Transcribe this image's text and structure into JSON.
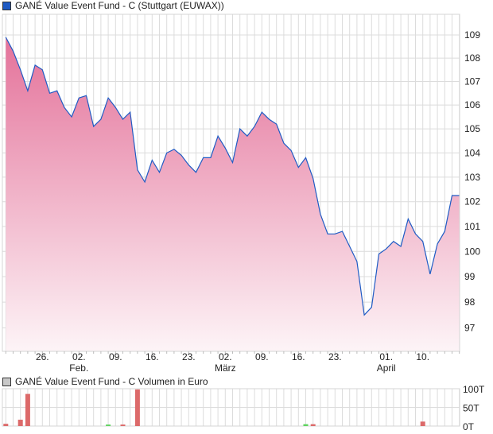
{
  "chart_data": [
    {
      "type": "area",
      "title": "GANÉ Value Event Fund - C (Stuttgart (EUWAX))",
      "yscale": "log",
      "ylim": [
        96.1,
        109.9
      ],
      "y_ticks": [
        97,
        98,
        99,
        100,
        101,
        102,
        103,
        104,
        105,
        106,
        107,
        108,
        109
      ],
      "grid": true,
      "legend": "top-left",
      "line_color": "#1f5bc4",
      "fill_top_color": "#e4729a",
      "fill_bottom_color": "#fdf4f7",
      "values": [
        108.9,
        108.3,
        107.5,
        106.6,
        107.7,
        107.5,
        106.5,
        106.6,
        105.9,
        105.5,
        106.3,
        106.4,
        105.1,
        105.4,
        106.3,
        105.9,
        105.4,
        105.7,
        103.3,
        102.8,
        103.7,
        103.2,
        104.0,
        104.15,
        103.9,
        103.5,
        103.2,
        103.8,
        103.8,
        104.7,
        104.2,
        103.6,
        105.0,
        104.7,
        105.1,
        105.7,
        105.4,
        105.2,
        104.4,
        104.1,
        103.4,
        103.8,
        102.95,
        101.5,
        100.7,
        100.7,
        100.8,
        100.2,
        99.6,
        97.5,
        97.8,
        99.9,
        100.1,
        100.4,
        100.2,
        101.3,
        100.7,
        100.4,
        99.1,
        100.3,
        100.8,
        102.25,
        102.25
      ],
      "x_ticks": [
        {
          "index": 5,
          "label": "26."
        },
        {
          "index": 10,
          "label": "02.",
          "month": "Feb."
        },
        {
          "index": 15,
          "label": "09."
        },
        {
          "index": 20,
          "label": "16."
        },
        {
          "index": 25,
          "label": "23."
        },
        {
          "index": 30,
          "label": "02.",
          "month": "März"
        },
        {
          "index": 35,
          "label": "09."
        },
        {
          "index": 40,
          "label": "16."
        },
        {
          "index": 45,
          "label": "23."
        },
        {
          "index": 52,
          "label": "01.",
          "month": "April"
        },
        {
          "index": 57,
          "label": "10."
        }
      ]
    },
    {
      "type": "bar",
      "title": "GANÉ Value Event Fund - C Volumen in Euro",
      "ylim": [
        0,
        100
      ],
      "y_ticks": [
        {
          "value": 0,
          "label": "0T"
        },
        {
          "value": 50,
          "label": "50T"
        },
        {
          "value": 100,
          "label": "100T"
        }
      ],
      "up_color": "#5fd35f",
      "down_color": "#dc6a6a",
      "bars": [
        {
          "index": 0,
          "value": 6,
          "dir": "down"
        },
        {
          "index": 2,
          "value": 17,
          "dir": "down"
        },
        {
          "index": 3,
          "value": 86,
          "dir": "down"
        },
        {
          "index": 14,
          "value": 4,
          "dir": "up"
        },
        {
          "index": 16,
          "value": 4,
          "dir": "down"
        },
        {
          "index": 18,
          "value": 98,
          "dir": "down"
        },
        {
          "index": 41,
          "value": 5,
          "dir": "up"
        },
        {
          "index": 42,
          "value": 5,
          "dir": "down"
        },
        {
          "index": 57,
          "value": 12,
          "dir": "down"
        }
      ]
    }
  ]
}
